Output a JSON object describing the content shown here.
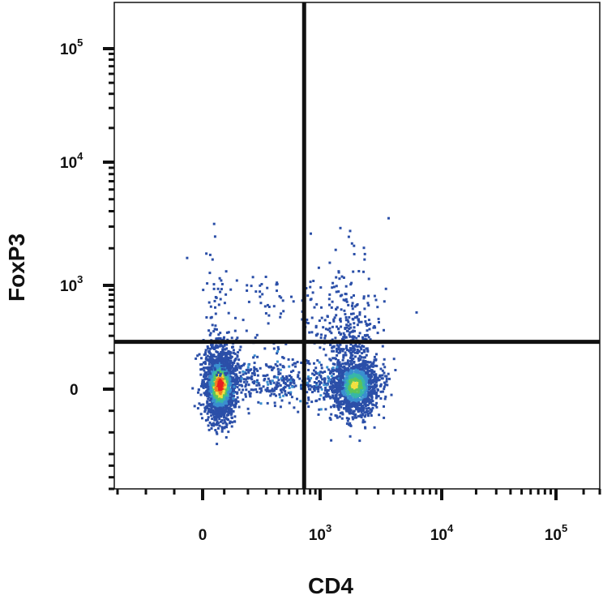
{
  "chart_data": {
    "type": "scatter",
    "subtype": "flow-cytometry-density-plot",
    "xlabel": "CD4",
    "ylabel": "FoxP3",
    "x_scale": "biexponential",
    "y_scale": "biexponential",
    "x_ticks": [
      {
        "value": 0,
        "base": "0",
        "exp": ""
      },
      {
        "value": 1000,
        "base": "10",
        "exp": "3"
      },
      {
        "value": 10000,
        "base": "10",
        "exp": "4"
      },
      {
        "value": 100000,
        "base": "10",
        "exp": "5"
      }
    ],
    "y_ticks": [
      {
        "value": 0,
        "base": "0",
        "exp": ""
      },
      {
        "value": 1000,
        "base": "10",
        "exp": "3"
      },
      {
        "value": 10000,
        "base": "10",
        "exp": "4"
      },
      {
        "value": 100000,
        "base": "10",
        "exp": "5"
      }
    ],
    "quadrant_gate": {
      "x": 700,
      "y": 260
    },
    "density_colors": [
      "#2b4fa8",
      "#3a8fd0",
      "#37b7a8",
      "#5cc45a",
      "#f0e040",
      "#f08020",
      "#e82020"
    ],
    "populations": [
      {
        "center_x": 75,
        "center_y": 30,
        "spread": "tight",
        "peak_density": "high"
      },
      {
        "center_x": 1900,
        "center_y": 30,
        "spread": "medium",
        "peak_density": "medium"
      }
    ],
    "grid": false,
    "legend": "none"
  }
}
